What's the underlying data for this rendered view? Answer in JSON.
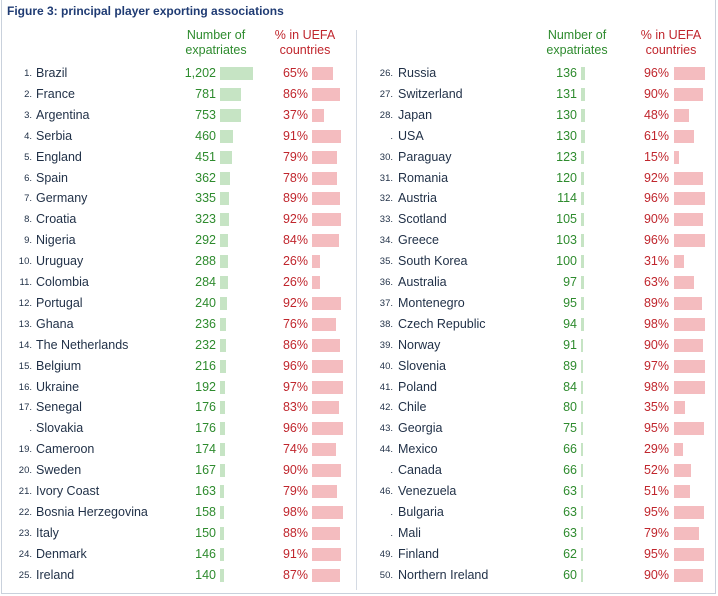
{
  "title": "Figure 3: principal player exporting associations",
  "headers": {
    "count": "Number of\nexpatriates",
    "pct": "% in UEFA\ncountries"
  },
  "colors": {
    "count_text": "#2e8b2e",
    "count_bar": "#c6e4c4",
    "pct_text": "#c0262d",
    "pct_bar": "#f4bcbf",
    "title": "#1f3b73"
  },
  "chart_data": {
    "type": "table",
    "count_max": 1202,
    "left": [
      {
        "rank": "1.",
        "country": "Brazil",
        "count": 1202,
        "count_label": "1,202",
        "pct": 65
      },
      {
        "rank": "2.",
        "country": "France",
        "count": 781,
        "count_label": "781",
        "pct": 86
      },
      {
        "rank": "3.",
        "country": "Argentina",
        "count": 753,
        "count_label": "753",
        "pct": 37
      },
      {
        "rank": "4.",
        "country": "Serbia",
        "count": 460,
        "count_label": "460",
        "pct": 91
      },
      {
        "rank": "5.",
        "country": "England",
        "count": 451,
        "count_label": "451",
        "pct": 79
      },
      {
        "rank": "6.",
        "country": "Spain",
        "count": 362,
        "count_label": "362",
        "pct": 78
      },
      {
        "rank": "7.",
        "country": "Germany",
        "count": 335,
        "count_label": "335",
        "pct": 89
      },
      {
        "rank": "8.",
        "country": "Croatia",
        "count": 323,
        "count_label": "323",
        "pct": 92
      },
      {
        "rank": "9.",
        "country": "Nigeria",
        "count": 292,
        "count_label": "292",
        "pct": 84
      },
      {
        "rank": "10.",
        "country": "Uruguay",
        "count": 288,
        "count_label": "288",
        "pct": 26
      },
      {
        "rank": "11.",
        "country": "Colombia",
        "count": 284,
        "count_label": "284",
        "pct": 26
      },
      {
        "rank": "12.",
        "country": "Portugal",
        "count": 240,
        "count_label": "240",
        "pct": 92
      },
      {
        "rank": "13.",
        "country": "Ghana",
        "count": 236,
        "count_label": "236",
        "pct": 76
      },
      {
        "rank": "14.",
        "country": "The Netherlands",
        "count": 232,
        "count_label": "232",
        "pct": 86
      },
      {
        "rank": "15.",
        "country": "Belgium",
        "count": 216,
        "count_label": "216",
        "pct": 96
      },
      {
        "rank": "16.",
        "country": "Ukraine",
        "count": 192,
        "count_label": "192",
        "pct": 97
      },
      {
        "rank": "17.",
        "country": "Senegal",
        "count": 176,
        "count_label": "176",
        "pct": 83
      },
      {
        "rank": ".",
        "country": "Slovakia",
        "count": 176,
        "count_label": "176",
        "pct": 96
      },
      {
        "rank": "19.",
        "country": "Cameroon",
        "count": 174,
        "count_label": "174",
        "pct": 74
      },
      {
        "rank": "20.",
        "country": "Sweden",
        "count": 167,
        "count_label": "167",
        "pct": 90
      },
      {
        "rank": "21.",
        "country": "Ivory Coast",
        "count": 163,
        "count_label": "163",
        "pct": 79
      },
      {
        "rank": "22.",
        "country": "Bosnia Herzegovina",
        "count": 158,
        "count_label": "158",
        "pct": 98
      },
      {
        "rank": "23.",
        "country": "Italy",
        "count": 150,
        "count_label": "150",
        "pct": 88
      },
      {
        "rank": "24.",
        "country": "Denmark",
        "count": 146,
        "count_label": "146",
        "pct": 91
      },
      {
        "rank": "25.",
        "country": "Ireland",
        "count": 140,
        "count_label": "140",
        "pct": 87
      }
    ],
    "right": [
      {
        "rank": "26.",
        "country": "Russia",
        "count": 136,
        "count_label": "136",
        "pct": 96
      },
      {
        "rank": "27.",
        "country": "Switzerland",
        "count": 131,
        "count_label": "131",
        "pct": 90
      },
      {
        "rank": "28.",
        "country": "Japan",
        "count": 130,
        "count_label": "130",
        "pct": 48
      },
      {
        "rank": ".",
        "country": "USA",
        "count": 130,
        "count_label": "130",
        "pct": 61
      },
      {
        "rank": "30.",
        "country": "Paraguay",
        "count": 123,
        "count_label": "123",
        "pct": 15
      },
      {
        "rank": "31.",
        "country": "Romania",
        "count": 120,
        "count_label": "120",
        "pct": 92
      },
      {
        "rank": "32.",
        "country": "Austria",
        "count": 114,
        "count_label": "114",
        "pct": 96
      },
      {
        "rank": "33.",
        "country": "Scotland",
        "count": 105,
        "count_label": "105",
        "pct": 90
      },
      {
        "rank": "34.",
        "country": "Greece",
        "count": 103,
        "count_label": "103",
        "pct": 96
      },
      {
        "rank": "35.",
        "country": "South Korea",
        "count": 100,
        "count_label": "100",
        "pct": 31
      },
      {
        "rank": "36.",
        "country": "Australia",
        "count": 97,
        "count_label": "97",
        "pct": 63
      },
      {
        "rank": "37.",
        "country": "Montenegro",
        "count": 95,
        "count_label": "95",
        "pct": 89
      },
      {
        "rank": "38.",
        "country": "Czech Republic",
        "count": 94,
        "count_label": "94",
        "pct": 98
      },
      {
        "rank": "39.",
        "country": "Norway",
        "count": 91,
        "count_label": "91",
        "pct": 90
      },
      {
        "rank": "40.",
        "country": "Slovenia",
        "count": 89,
        "count_label": "89",
        "pct": 97
      },
      {
        "rank": "41.",
        "country": "Poland",
        "count": 84,
        "count_label": "84",
        "pct": 98
      },
      {
        "rank": "42.",
        "country": "Chile",
        "count": 80,
        "count_label": "80",
        "pct": 35
      },
      {
        "rank": "43.",
        "country": "Georgia",
        "count": 75,
        "count_label": "75",
        "pct": 95
      },
      {
        "rank": "44.",
        "country": "Mexico",
        "count": 66,
        "count_label": "66",
        "pct": 29
      },
      {
        "rank": ".",
        "country": "Canada",
        "count": 66,
        "count_label": "66",
        "pct": 52
      },
      {
        "rank": "46.",
        "country": "Venezuela",
        "count": 63,
        "count_label": "63",
        "pct": 51
      },
      {
        "rank": ".",
        "country": "Bulgaria",
        "count": 63,
        "count_label": "63",
        "pct": 95
      },
      {
        "rank": ".",
        "country": "Mali",
        "count": 63,
        "count_label": "63",
        "pct": 79
      },
      {
        "rank": "49.",
        "country": "Finland",
        "count": 62,
        "count_label": "62",
        "pct": 95
      },
      {
        "rank": "50.",
        "country": "Northern Ireland",
        "count": 60,
        "count_label": "60",
        "pct": 90
      }
    ]
  }
}
